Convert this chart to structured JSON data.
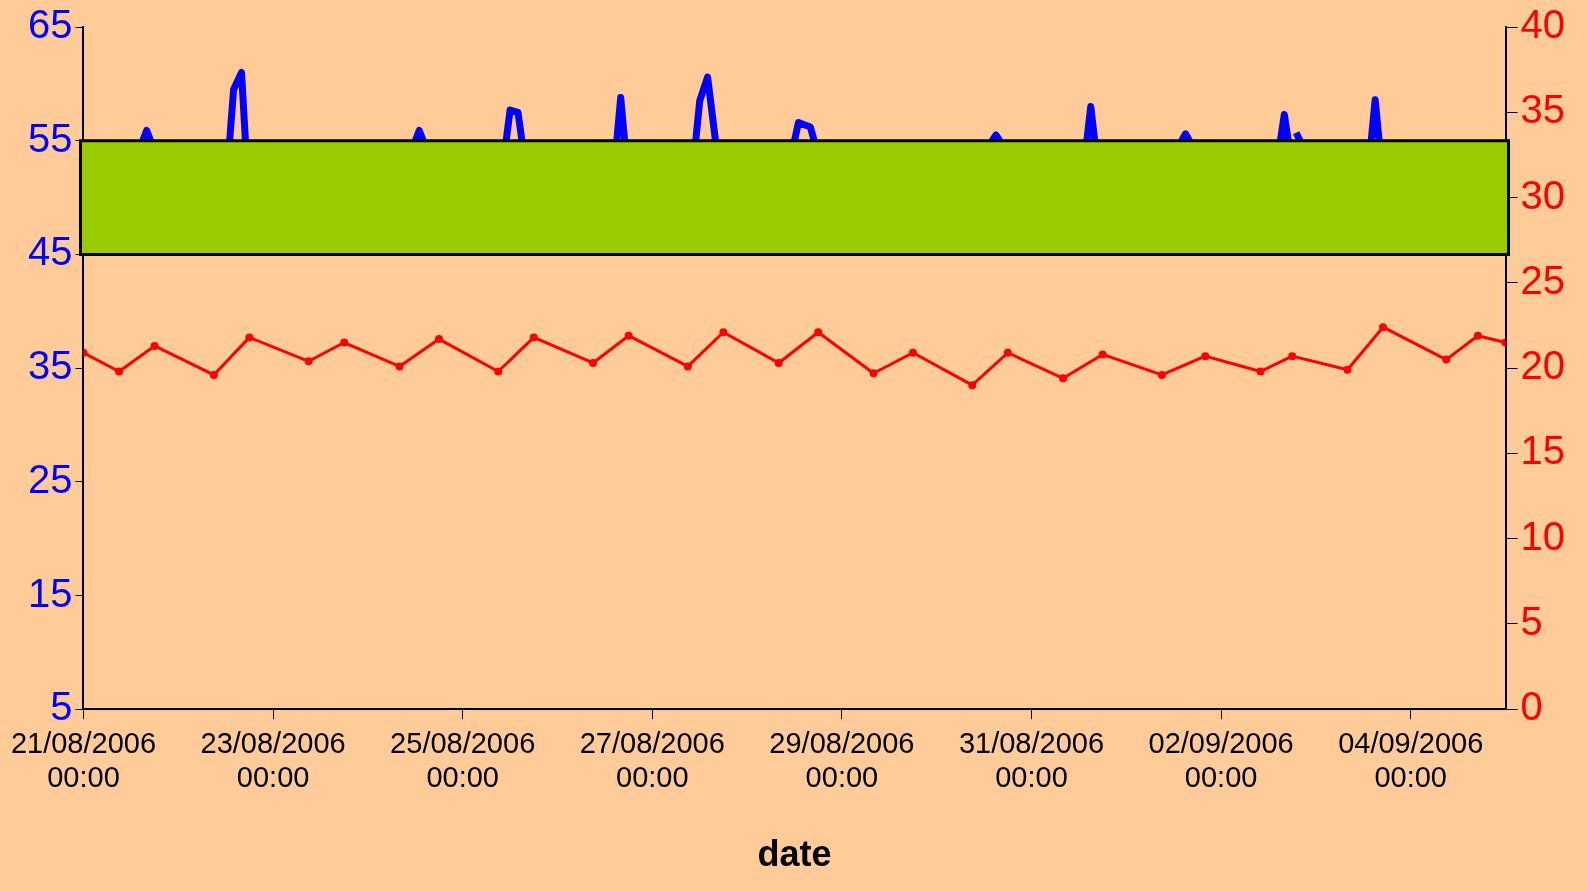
{
  "chart_data": {
    "type": "line",
    "xlabel": "date",
    "xlim": [
      "2006-08-21T00:00",
      "2006-09-05T00:00"
    ],
    "xticks": [
      {
        "value": "2006-08-21T00:00",
        "label": "21/08/2006 00:00"
      },
      {
        "value": "2006-08-23T00:00",
        "label": "23/08/2006 00:00"
      },
      {
        "value": "2006-08-25T00:00",
        "label": "25/08/2006 00:00"
      },
      {
        "value": "2006-08-27T00:00",
        "label": "27/08/2006 00:00"
      },
      {
        "value": "2006-08-29T00:00",
        "label": "29/08/2006 00:00"
      },
      {
        "value": "2006-08-31T00:00",
        "label": "31/08/2006 00:00"
      },
      {
        "value": "2006-09-02T00:00",
        "label": "02/09/2006 00:00"
      },
      {
        "value": "2006-09-04T00:00",
        "label": "04/09/2006 00:00"
      }
    ],
    "ylim": [
      5,
      65
    ],
    "yticks": [
      5,
      15,
      25,
      35,
      45,
      55,
      65
    ],
    "y2lim": [
      0,
      40
    ],
    "y2ticks": [
      0,
      5,
      10,
      15,
      20,
      25,
      30,
      35,
      40
    ],
    "grid": false,
    "legend": false,
    "bands": [
      {
        "axis": "y",
        "from": 45,
        "to": 55,
        "color": "#99cc00"
      }
    ],
    "series": [
      {
        "color": "#0000ff",
        "marker": "none",
        "x": [
          "2006-08-21T15:00",
          "2006-08-21T16:00",
          "2006-08-21T17:00",
          "2006-08-22T00:00",
          "2006-08-22T13:00",
          "2006-08-22T14:00",
          "2006-08-22T16:00",
          "2006-08-22T17:00",
          "2006-08-23T00:00",
          "2006-08-24T12:00",
          "2006-08-24T13:00",
          "2006-08-24T14:00",
          "2006-08-25T00:00",
          "2006-08-25T11:00",
          "2006-08-25T12:00",
          "2006-08-25T14:00",
          "2006-08-25T15:00",
          "2006-08-26T00:00",
          "2006-08-26T15:00",
          "2006-08-26T16:00",
          "2006-08-26T17:00",
          "2006-08-27T00:00",
          "2006-08-27T11:00",
          "2006-08-27T12:00",
          "2006-08-27T14:00",
          "2006-08-27T16:00",
          "2006-08-28T00:00",
          "2006-08-28T12:00",
          "2006-08-28T13:00",
          "2006-08-28T16:00",
          "2006-08-28T17:00",
          "2006-08-29T00:00",
          "2006-08-30T14:00",
          "2006-08-30T15:00",
          "2006-08-30T16:00",
          "2006-08-31T00:00",
          "2006-08-31T14:00",
          "2006-08-31T15:00",
          "2006-08-31T16:00",
          "2006-09-01T00:00",
          "2006-09-01T14:00",
          "2006-09-01T15:00",
          "2006-09-01T16:00",
          "2006-09-02T00:00",
          "2006-09-02T15:00",
          "2006-09-02T16:00",
          "2006-09-02T17:00",
          "2006-09-02T18:00",
          "2006-09-02T19:00",
          "2006-09-02T20:00",
          "2006-09-03T00:00",
          "2006-09-03T14:00",
          "2006-09-03T15:00",
          "2006-09-03T16:00"
        ],
        "values": [
          55,
          55.9,
          55,
          null,
          55,
          59.5,
          61,
          55,
          null,
          55,
          55.9,
          55,
          null,
          55,
          57.7,
          57.5,
          55,
          null,
          55,
          58.8,
          55,
          null,
          55,
          58.5,
          60.6,
          55,
          null,
          55,
          56.6,
          56.2,
          55,
          null,
          55,
          55.5,
          55,
          null,
          55,
          58,
          55,
          null,
          55,
          55.6,
          55,
          null,
          55,
          57.3,
          55,
          null,
          55.7,
          55,
          null,
          55,
          58.6,
          55
        ]
      },
      {
        "color": "#ff0000",
        "marker": "circle",
        "axis": "y2",
        "x": [
          "2006-08-21T00:00",
          "2006-08-21T09:00",
          "2006-08-21T18:00",
          "2006-08-22T09:00",
          "2006-08-22T18:00",
          "2006-08-23T09:00",
          "2006-08-23T18:00",
          "2006-08-24T08:00",
          "2006-08-24T18:00",
          "2006-08-25T09:00",
          "2006-08-25T18:00",
          "2006-08-26T09:00",
          "2006-08-26T18:00",
          "2006-08-27T09:00",
          "2006-08-27T18:00",
          "2006-08-28T08:00",
          "2006-08-28T18:00",
          "2006-08-29T08:00",
          "2006-08-29T18:00",
          "2006-08-30T09:00",
          "2006-08-30T18:00",
          "2006-08-31T08:00",
          "2006-08-31T18:00",
          "2006-09-01T09:00",
          "2006-09-01T20:00",
          "2006-09-02T10:00",
          "2006-09-02T18:00",
          "2006-09-03T08:00",
          "2006-09-03T17:00",
          "2006-09-04T09:00",
          "2006-09-04T17:00",
          "2006-09-05T00:00"
        ],
        "values": [
          20.9,
          19.8,
          21.3,
          19.6,
          21.8,
          20.4,
          21.5,
          20.1,
          21.7,
          19.8,
          21.8,
          20.3,
          21.9,
          20.1,
          22.1,
          20.3,
          22.1,
          19.7,
          20.9,
          19.0,
          20.9,
          19.4,
          20.8,
          19.6,
          20.7,
          19.8,
          20.7,
          19.9,
          22.4,
          20.5,
          21.9,
          21.5
        ]
      }
    ]
  }
}
